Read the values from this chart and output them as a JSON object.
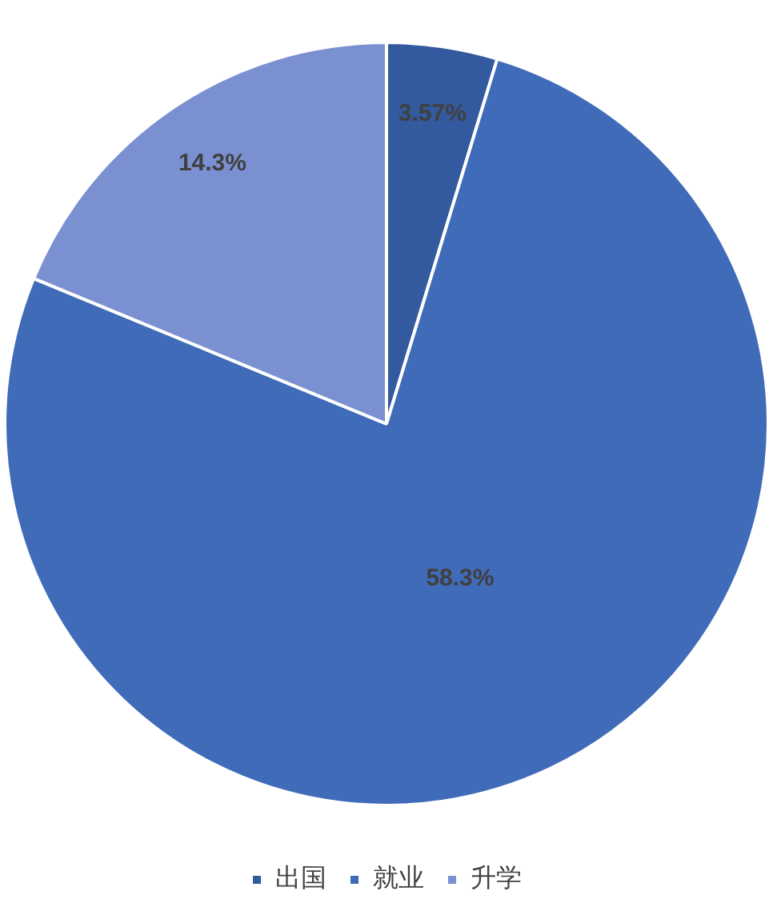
{
  "chart_data": {
    "type": "pie",
    "categories": [
      "出国",
      "就业",
      "升学"
    ],
    "values": [
      3.57,
      58.3,
      14.3
    ],
    "value_labels": [
      "3.57%",
      "58.3%",
      "14.3%"
    ],
    "colors": [
      "#335a9e",
      "#406bb9",
      "#7b90d0"
    ],
    "legend": "bottom"
  }
}
